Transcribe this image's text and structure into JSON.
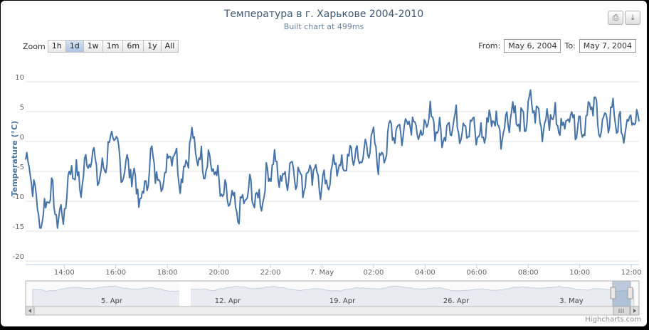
{
  "chart_data": {
    "type": "line",
    "title": "Температура в г. Харькове 2004-2010",
    "subtitle": "Built chart at 499ms",
    "ylabel": "Temperature (°C)",
    "xlabel": "",
    "ylim": [
      -20,
      10
    ],
    "yticks": [
      10,
      5,
      0,
      -5,
      -10,
      -15,
      -20
    ],
    "xrange_hours": [
      12.5,
      36.3
    ],
    "xticks": [
      {
        "h": 14,
        "label": "14:00"
      },
      {
        "h": 16,
        "label": "16:00"
      },
      {
        "h": 18,
        "label": "18:00"
      },
      {
        "h": 20,
        "label": "20:00"
      },
      {
        "h": 22,
        "label": "22:00"
      },
      {
        "h": 24,
        "label": "7. May"
      },
      {
        "h": 26,
        "label": "02:00"
      },
      {
        "h": 28,
        "label": "04:00"
      },
      {
        "h": 30,
        "label": "06:00"
      },
      {
        "h": 32,
        "label": "08:00"
      },
      {
        "h": 34,
        "label": "10:00"
      },
      {
        "h": 36,
        "label": "12:00"
      }
    ],
    "series": [
      {
        "name": "Temperature",
        "color": "#4572a7",
        "keyframes_h": [
          12.5,
          12.8,
          13.1,
          13.4,
          13.7,
          14.0,
          14.3,
          14.6,
          15.0,
          15.4,
          15.8,
          16.0,
          16.2,
          16.6,
          17.0,
          17.4,
          17.8,
          18.2,
          18.6,
          18.9,
          19.3,
          19.7,
          20.0,
          20.3,
          20.6,
          21.0,
          21.4,
          21.8,
          22.2,
          22.6,
          23.0,
          23.4,
          23.8,
          24.2,
          24.6,
          25.0,
          25.4,
          25.8,
          26.2,
          26.6,
          27.0,
          27.4,
          27.8,
          28.2,
          28.6,
          29.0,
          29.4,
          29.8,
          30.2,
          30.6,
          31.0,
          31.4,
          31.8,
          32.2,
          32.6,
          33.0,
          33.4,
          33.8,
          34.2,
          34.6,
          35.0,
          35.4,
          35.8,
          36.3
        ],
        "keyframes_v": [
          -3,
          -8,
          -13,
          -9,
          -12,
          -11,
          -5,
          -6,
          -3,
          -5,
          -1,
          0,
          -3,
          -6,
          -9,
          -4,
          -6,
          -2,
          -5,
          -1,
          -2,
          -5,
          -6,
          -10,
          -12,
          -9,
          -10,
          -7,
          -4,
          -6,
          -5,
          -6,
          -5,
          -8,
          -3,
          -4,
          -2,
          -1,
          -2,
          0,
          3,
          3,
          2,
          3,
          2,
          2,
          4,
          1,
          2,
          3,
          3,
          4,
          4,
          5,
          4,
          3,
          4,
          3,
          4,
          5,
          3,
          4,
          2,
          3
        ],
        "swing": 3.6
      }
    ],
    "navigator": {
      "labels": [
        "5. Apr",
        "12. Apr",
        "19. Apr",
        "26. Apr",
        "3. May"
      ],
      "selected_range": "May 6, 2004 – May 7, 2004"
    }
  },
  "zoom": {
    "label": "Zoom",
    "buttons": [
      "1h",
      "1d",
      "1w",
      "1m",
      "6m",
      "1y",
      "All"
    ],
    "selected": "1d"
  },
  "range_selector": {
    "from_label": "From:",
    "from_value": "May 6, 2004",
    "to_label": "To:",
    "to_value": "May 7, 2004"
  },
  "export": {
    "print_icon": "printer-icon",
    "download_icon": "download-icon"
  },
  "credits": "Highcharts.com"
}
